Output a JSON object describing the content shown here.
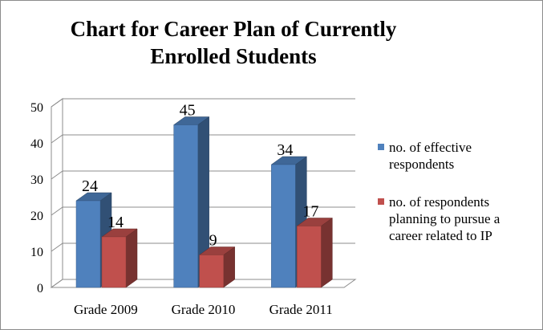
{
  "chart_data": {
    "type": "bar",
    "title_lines": [
      "Chart for Career Plan of Currently",
      "Enrolled Students"
    ],
    "categories": [
      "Grade 2009",
      "Grade 2010",
      "Grade 2011"
    ],
    "series": [
      {
        "name": "no. of effective respondents",
        "name_lines": [
          "no. of effective",
          "respondents"
        ],
        "values": [
          24,
          45,
          34
        ],
        "color": "#4f81bd"
      },
      {
        "name": "no. of respondents planning to pursue a career related to IP",
        "name_lines": [
          "no. of respondents",
          "planning to pursue a",
          "career related to IP"
        ],
        "values": [
          14,
          9,
          17
        ],
        "color": "#c0504d"
      }
    ],
    "y_ticks": [
      0,
      10,
      20,
      30,
      40,
      50
    ],
    "ylim": [
      0,
      50
    ],
    "grid": true,
    "legend_position": "right",
    "data_labels": true,
    "style": "3d-clustered-column"
  }
}
